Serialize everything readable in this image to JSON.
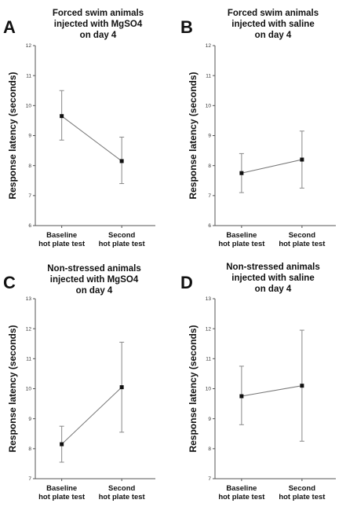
{
  "chart_data": [
    {
      "type": "line",
      "panel_label": "A",
      "title": [
        "Forced swim animals",
        "injected with MgSO4",
        "on day 4"
      ],
      "ylabel": "Response latency (seconds)",
      "categories": [
        [
          "Baseline",
          "hot plate test"
        ],
        [
          "Second",
          "hot plate test"
        ]
      ],
      "ylim": [
        6,
        12
      ],
      "yticks": [
        6,
        7,
        8,
        9,
        10,
        11,
        12
      ],
      "values": [
        9.65,
        8.15
      ],
      "errors": [
        [
          8.85,
          10.5
        ],
        [
          7.4,
          8.95
        ]
      ]
    },
    {
      "type": "line",
      "panel_label": "B",
      "title": [
        "Forced swim animals",
        "injected with saline",
        "on day 4"
      ],
      "ylabel": "Response latency (seconds)",
      "categories": [
        [
          "Baseline",
          "hot plate test"
        ],
        [
          "Second",
          "hot plate test"
        ]
      ],
      "ylim": [
        6,
        12
      ],
      "yticks": [
        6,
        7,
        8,
        9,
        10,
        11,
        12
      ],
      "values": [
        7.75,
        8.2
      ],
      "errors": [
        [
          7.1,
          8.4
        ],
        [
          7.25,
          9.15
        ]
      ]
    },
    {
      "type": "line",
      "panel_label": "C",
      "title": [
        "Non-stressed animals",
        "injected with MgSO4",
        "on day 4"
      ],
      "ylabel": "Response latency (seconds)",
      "categories": [
        [
          "Baseline",
          "hot plate test"
        ],
        [
          "Second",
          "hot plate test"
        ]
      ],
      "ylim": [
        7,
        13
      ],
      "yticks": [
        7,
        8,
        9,
        10,
        11,
        12,
        13
      ],
      "values": [
        8.15,
        10.05
      ],
      "errors": [
        [
          7.55,
          8.75
        ],
        [
          8.55,
          11.55
        ]
      ]
    },
    {
      "type": "line",
      "panel_label": "D",
      "title": [
        "Non-stressed animals",
        "injected with saline",
        "on day 4"
      ],
      "ylabel": "Response latency (seconds)",
      "categories": [
        [
          "Baseline",
          "hot plate test"
        ],
        [
          "Second",
          "hot plate test"
        ]
      ],
      "ylim": [
        7,
        13
      ],
      "yticks": [
        7,
        8,
        9,
        10,
        11,
        12,
        13
      ],
      "values": [
        9.75,
        10.1
      ],
      "errors": [
        [
          8.8,
          10.75
        ],
        [
          8.25,
          11.95
        ]
      ]
    }
  ]
}
